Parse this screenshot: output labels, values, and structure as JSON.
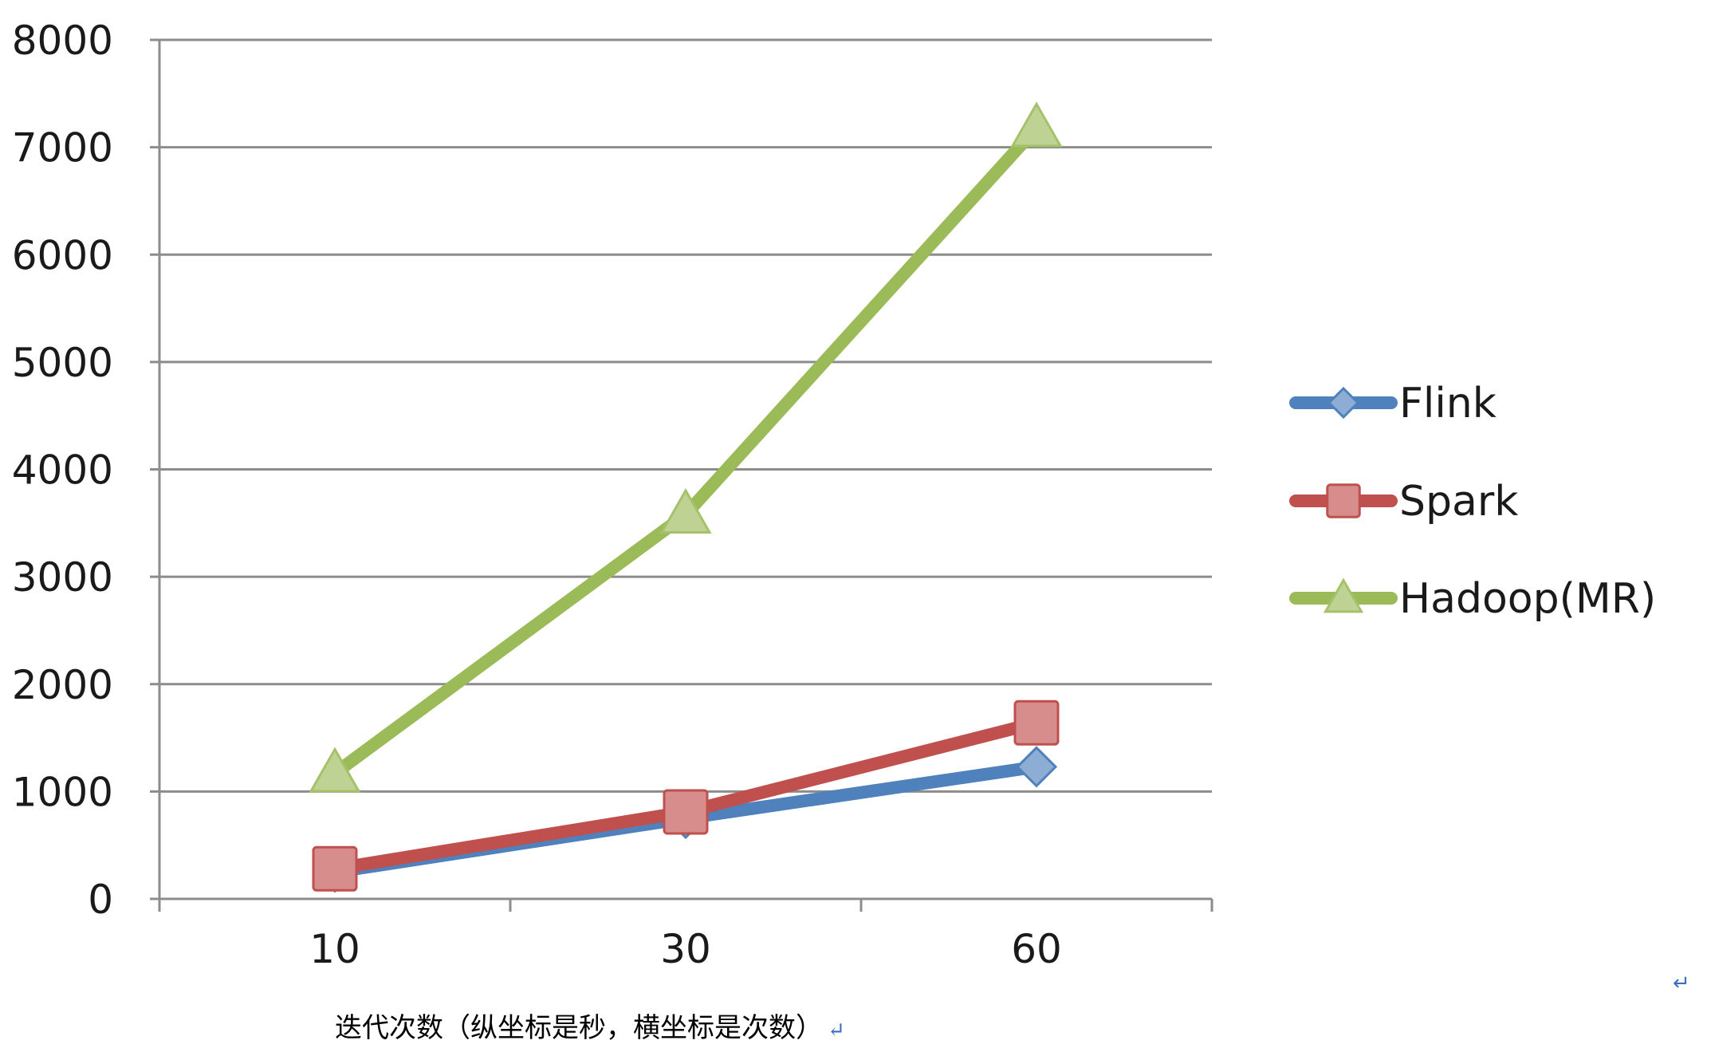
{
  "chart_data": {
    "type": "line",
    "categories": [
      "10",
      "30",
      "60"
    ],
    "series": [
      {
        "name": "Flink",
        "values": [
          250,
          750,
          1230
        ],
        "color": "#4f81bd",
        "marker": "diamond"
      },
      {
        "name": "Spark",
        "values": [
          280,
          810,
          1640
        ],
        "color": "#c0504d",
        "marker": "square"
      },
      {
        "name": "Hadoop(MR)",
        "values": [
          1170,
          3580,
          7180
        ],
        "color": "#9bbb59",
        "marker": "triangle"
      }
    ],
    "ylim": [
      0,
      8000
    ],
    "yticks": [
      "0",
      "1000",
      "2000",
      "3000",
      "4000",
      "5000",
      "6000",
      "7000",
      "8000"
    ],
    "grid": true,
    "legend_position": "right",
    "xlabel": "",
    "ylabel": "",
    "title": ""
  },
  "caption": "迭代次数（纵坐标是秒，横坐标是次数）",
  "paragraph_mark": "↵"
}
